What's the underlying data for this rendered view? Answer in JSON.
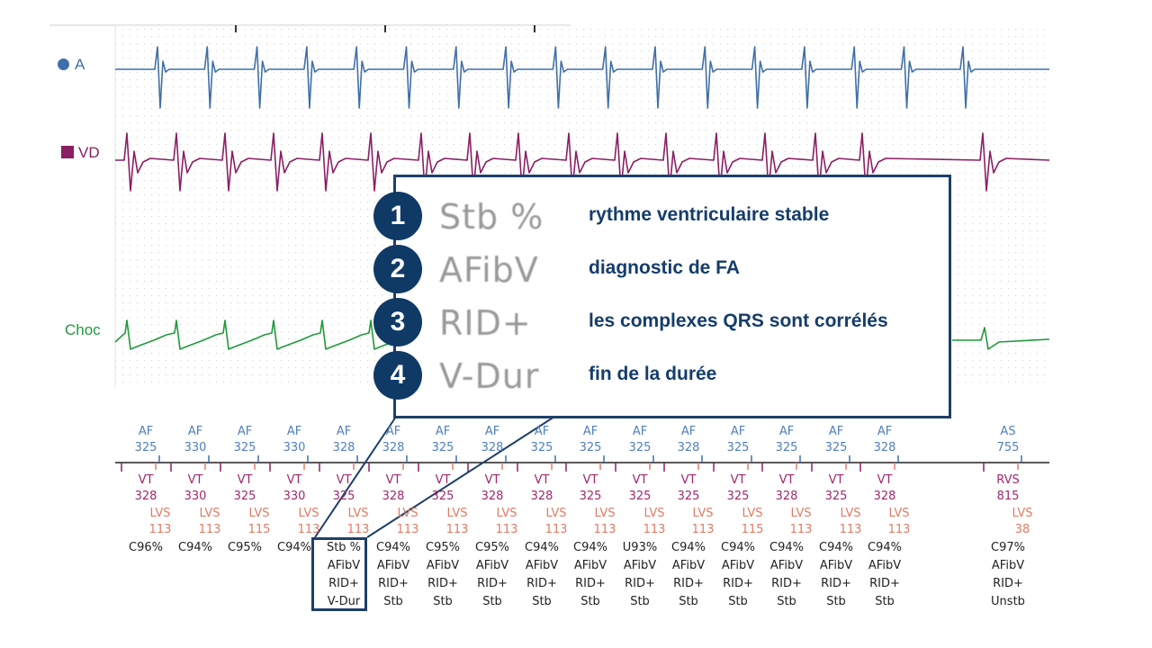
{
  "channels": {
    "a": "A",
    "vd": "VD",
    "choc": "Choc"
  },
  "colors": {
    "a": "#3f6fa8",
    "vd": "#8a1f63",
    "choc": "#1f9a3b",
    "lvs": "#e07b64",
    "callout": "#0f3a66"
  },
  "atrial_row": [
    [
      "AF",
      "325"
    ],
    [
      "AF",
      "330"
    ],
    [
      "AF",
      "325"
    ],
    [
      "AF",
      "330"
    ],
    [
      "AF",
      "328"
    ],
    [
      "AF",
      "328"
    ],
    [
      "AF",
      "325"
    ],
    [
      "AF",
      "328"
    ],
    [
      "AF",
      "325"
    ],
    [
      "AF",
      "325"
    ],
    [
      "AF",
      "325"
    ],
    [
      "AF",
      "328"
    ],
    [
      "AF",
      "325"
    ],
    [
      "AF",
      "325"
    ],
    [
      "AF",
      "325"
    ],
    [
      "AF",
      "328"
    ],
    [
      "AS",
      "755"
    ]
  ],
  "ventricular_row": [
    [
      "VT",
      "328"
    ],
    [
      "VT",
      "330"
    ],
    [
      "VT",
      "325"
    ],
    [
      "VT",
      "330"
    ],
    [
      "VT",
      "325"
    ],
    [
      "VT",
      "328"
    ],
    [
      "VT",
      "325"
    ],
    [
      "VT",
      "328"
    ],
    [
      "VT",
      "328"
    ],
    [
      "VT",
      "325"
    ],
    [
      "VT",
      "325"
    ],
    [
      "VT",
      "325"
    ],
    [
      "VT",
      "325"
    ],
    [
      "VT",
      "328"
    ],
    [
      "VT",
      "325"
    ],
    [
      "VT",
      "328"
    ],
    [
      "RVS",
      "815"
    ]
  ],
  "lvs_row": [
    [
      "LVS",
      "113"
    ],
    [
      "LVS",
      "113"
    ],
    [
      "LVS",
      "115"
    ],
    [
      "LVS",
      "113"
    ],
    [
      "LVS",
      "113"
    ],
    [
      "LVS",
      "113"
    ],
    [
      "LVS",
      "113"
    ],
    [
      "LVS",
      "113"
    ],
    [
      "LVS",
      "113"
    ],
    [
      "LVS",
      "113"
    ],
    [
      "LVS",
      "113"
    ],
    [
      "LVS",
      "113"
    ],
    [
      "LVS",
      "115"
    ],
    [
      "LVS",
      "113"
    ],
    [
      "LVS",
      "113"
    ],
    [
      "LVS",
      "113"
    ],
    [
      "LVS",
      "38"
    ]
  ],
  "classification_row": [
    [
      "C96%"
    ],
    [
      "C94%"
    ],
    [
      "C95%"
    ],
    [
      "C94%"
    ],
    [
      "Stb %",
      "AFibV",
      "RID+",
      "V-Dur"
    ],
    [
      "C94%",
      "AFibV",
      "RID+",
      "Stb"
    ],
    [
      "C95%",
      "AFibV",
      "RID+",
      "Stb"
    ],
    [
      "C95%",
      "AFibV",
      "RID+",
      "Stb"
    ],
    [
      "C94%",
      "AFibV",
      "RID+",
      "Stb"
    ],
    [
      "C94%",
      "AFibV",
      "RID+",
      "Stb"
    ],
    [
      "U93%",
      "AFibV",
      "RID+",
      "Stb"
    ],
    [
      "C94%",
      "AFibV",
      "RID+",
      "Stb"
    ],
    [
      "C94%",
      "AFibV",
      "RID+",
      "Stb"
    ],
    [
      "C94%",
      "AFibV",
      "RID+",
      "Stb"
    ],
    [
      "C94%",
      "AFibV",
      "RID+",
      "Stb"
    ],
    [
      "C94%",
      "AFibV",
      "RID+",
      "Stb"
    ],
    [
      "C97%",
      "AFibV",
      "RID+",
      "Unstb"
    ]
  ],
  "legend": [
    {
      "num": "1",
      "code": "Stb %",
      "desc": "rythme ventriculaire stable"
    },
    {
      "num": "2",
      "code": "AFibV",
      "desc": "diagnostic de FA"
    },
    {
      "num": "3",
      "code": "RID+",
      "desc": "les complexes QRS sont corrélés"
    },
    {
      "num": "4",
      "code": "V-Dur",
      "desc": "fin de la durée"
    }
  ]
}
